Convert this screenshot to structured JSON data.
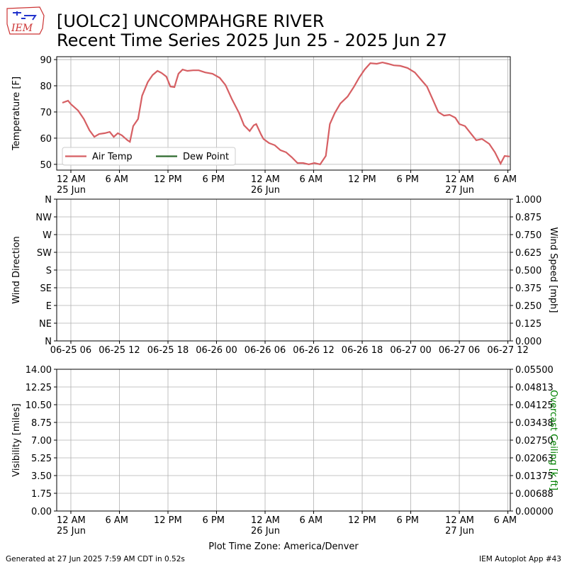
{
  "title": [
    "[UOLC2] UNCOMPAHGRE RIVER",
    "Recent Time Series 2025 Jun 25 - 2025 Jun 27"
  ],
  "logo_text": "IEM",
  "footer": {
    "left": "Generated at 27 Jun 2025 7:59 AM CDT in 0.52s",
    "right": "IEM Autoplot App #43"
  },
  "chart_data": [
    {
      "type": "line",
      "ylabel": "Temperature [F]",
      "grid": true,
      "legend": "lower left",
      "xlim": [
        -1.75,
        54.3
      ],
      "ylim": [
        47.8,
        91.1
      ],
      "xticks": [
        {
          "value": 0,
          "label": "12 AM\n25 Jun"
        },
        {
          "value": 6,
          "label": "6 AM"
        },
        {
          "value": 12,
          "label": "12 PM"
        },
        {
          "value": 18,
          "label": "6 PM"
        },
        {
          "value": 24,
          "label": "12 AM\n26 Jun"
        },
        {
          "value": 30,
          "label": "6 AM"
        },
        {
          "value": 36,
          "label": "12 PM"
        },
        {
          "value": 42,
          "label": "6 PM"
        },
        {
          "value": 48,
          "label": "12 AM\n27 Jun"
        },
        {
          "value": 54,
          "label": "6 AM"
        }
      ],
      "yticks": [
        50,
        60,
        70,
        80,
        90
      ],
      "series": [
        {
          "name": "Air Temp",
          "color": "#d65f63",
          "x": [
            -1.05,
            -0.35,
            0,
            0.9,
            1.6,
            2.3,
            2.9,
            3.5,
            4.2,
            4.8,
            5.3,
            5.8,
            6.3,
            7.0,
            7.3,
            7.7,
            8.3,
            8.8,
            9.5,
            10.1,
            10.7,
            11.2,
            11.8,
            12.3,
            12.8,
            13.3,
            13.8,
            14.4,
            15.1,
            15.8,
            16.6,
            17.5,
            18.4,
            19.1,
            19.9,
            20.8,
            21.4,
            22.1,
            22.6,
            22.9,
            23.5,
            23.8,
            24.5,
            25.2,
            25.9,
            26.6,
            27.3,
            28.0,
            28.7,
            29.4,
            30.1,
            30.8,
            31.5,
            32.0,
            32.6,
            33.3,
            34.2,
            35.0,
            35.6,
            36.3,
            37.0,
            37.8,
            38.5,
            39.2,
            39.9,
            40.7,
            41.6,
            42.5,
            43.3,
            44.0,
            44.7,
            45.4,
            46.1,
            46.8,
            47.5,
            48.0,
            48.7,
            49.4,
            50.1,
            50.8,
            51.7,
            52.4,
            53.1,
            53.6,
            54.2
          ],
          "values": [
            73.5,
            74.3,
            73,
            70.5,
            67.3,
            63,
            60.5,
            61.6,
            61.9,
            62.4,
            60.5,
            61.9,
            61.1,
            59.2,
            58.6,
            64.6,
            67.3,
            76.2,
            81.4,
            84.1,
            85.7,
            84.9,
            83.5,
            79.7,
            79.5,
            84.6,
            86.2,
            85.7,
            85.9,
            85.9,
            85.1,
            84.6,
            83,
            80.3,
            74.9,
            69.5,
            64.9,
            62.7,
            64.9,
            65.4,
            61.4,
            59.7,
            58.1,
            57.3,
            55.4,
            54.6,
            52.7,
            50.5,
            50.5,
            50,
            50.5,
            50,
            53.2,
            65.4,
            69.5,
            73.2,
            75.9,
            79.7,
            83,
            86.2,
            88.6,
            88.4,
            88.9,
            88.4,
            87.8,
            87.6,
            86.8,
            85.1,
            82.2,
            79.7,
            74.9,
            70,
            68.6,
            68.9,
            67.8,
            65.4,
            64.6,
            61.9,
            59.2,
            59.7,
            57.8,
            54.6,
            50.3,
            53.2,
            53
          ]
        },
        {
          "name": "Dew Point",
          "color": "#2d6a2d",
          "x": [],
          "values": []
        }
      ]
    },
    {
      "type": "line",
      "ylabel": "Wind Direction",
      "y2label": "Wind Speed [mph]",
      "grid": true,
      "xlim": [
        -1.75,
        54.3
      ],
      "ylim": [
        0,
        360
      ],
      "y2lim": [
        0,
        1
      ],
      "xticks": [
        {
          "value": 0,
          "label": "06-25 06"
        },
        {
          "value": 6,
          "label": "06-25 12"
        },
        {
          "value": 12,
          "label": "06-25 18"
        },
        {
          "value": 18,
          "label": "06-26 00"
        },
        {
          "value": 24,
          "label": "06-26 06"
        },
        {
          "value": 30,
          "label": "06-26 12"
        },
        {
          "value": 36,
          "label": "06-26 18"
        },
        {
          "value": 42,
          "label": "06-27 00"
        },
        {
          "value": 48,
          "label": "06-27 06"
        },
        {
          "value": 54,
          "label": "06-27 12"
        }
      ],
      "yticks": [
        {
          "value": 0,
          "label": "N"
        },
        {
          "value": 45,
          "label": "NE"
        },
        {
          "value": 90,
          "label": "E"
        },
        {
          "value": 135,
          "label": "SE"
        },
        {
          "value": 180,
          "label": "S"
        },
        {
          "value": 225,
          "label": "SW"
        },
        {
          "value": 270,
          "label": "W"
        },
        {
          "value": 315,
          "label": "NW"
        },
        {
          "value": 360,
          "label": "N"
        }
      ],
      "y2ticks": [
        {
          "value": 0,
          "label": "0.000"
        },
        {
          "value": 0.125,
          "label": "0.125"
        },
        {
          "value": 0.25,
          "label": "0.250"
        },
        {
          "value": 0.375,
          "label": "0.375"
        },
        {
          "value": 0.5,
          "label": "0.500"
        },
        {
          "value": 0.625,
          "label": "0.625"
        },
        {
          "value": 0.75,
          "label": "0.750"
        },
        {
          "value": 0.875,
          "label": "0.875"
        },
        {
          "value": 1,
          "label": "1.000"
        }
      ],
      "series": []
    },
    {
      "type": "line",
      "ylabel": "Visibility [miles]",
      "y2label": "Overcast Ceiling [k ft]",
      "y2label_color": "#008000",
      "xlabel": "Plot Time Zone: America/Denver",
      "grid": true,
      "xlim": [
        -1.75,
        54.3
      ],
      "ylim": [
        0,
        14
      ],
      "y2lim": [
        0,
        0.055
      ],
      "xticks": [
        {
          "value": 0,
          "label": "12 AM\n25 Jun"
        },
        {
          "value": 6,
          "label": "6 AM"
        },
        {
          "value": 12,
          "label": "12 PM"
        },
        {
          "value": 18,
          "label": "6 PM"
        },
        {
          "value": 24,
          "label": "12 AM\n26 Jun"
        },
        {
          "value": 30,
          "label": "6 AM"
        },
        {
          "value": 36,
          "label": "12 PM"
        },
        {
          "value": 42,
          "label": "6 PM"
        },
        {
          "value": 48,
          "label": "12 AM\n27 Jun"
        },
        {
          "value": 54,
          "label": "6 AM"
        }
      ],
      "yticks": [
        {
          "value": 0,
          "label": "0.00"
        },
        {
          "value": 1.75,
          "label": "1.75"
        },
        {
          "value": 3.5,
          "label": "3.50"
        },
        {
          "value": 5.25,
          "label": "5.25"
        },
        {
          "value": 7,
          "label": "7.00"
        },
        {
          "value": 8.75,
          "label": "8.75"
        },
        {
          "value": 10.5,
          "label": "10.50"
        },
        {
          "value": 12.25,
          "label": "12.25"
        },
        {
          "value": 14,
          "label": "14.00"
        }
      ],
      "y2ticks": [
        {
          "value": 0,
          "label": "0.00000"
        },
        {
          "value": 0.006875,
          "label": "0.00688"
        },
        {
          "value": 0.01375,
          "label": "0.01375"
        },
        {
          "value": 0.020625,
          "label": "0.02063"
        },
        {
          "value": 0.0275,
          "label": "0.02750"
        },
        {
          "value": 0.034375,
          "label": "0.03438"
        },
        {
          "value": 0.04125,
          "label": "0.04125"
        },
        {
          "value": 0.048125,
          "label": "0.04813"
        },
        {
          "value": 0.055,
          "label": "0.05500"
        }
      ],
      "series": []
    }
  ]
}
